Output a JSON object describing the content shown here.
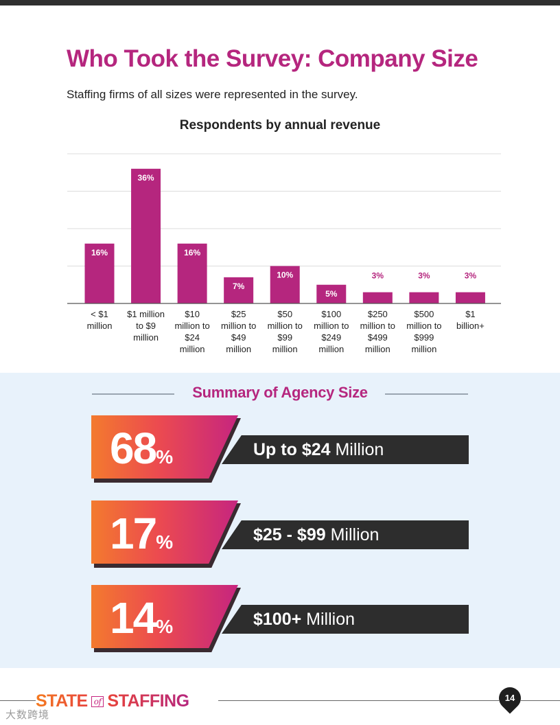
{
  "page": {
    "title": "Who Took the Survey: Company Size",
    "subtitle": "Staffing firms of all sizes were represented in the survey.",
    "page_number": "14",
    "watermark": "大数跨境"
  },
  "chart_data": {
    "type": "bar",
    "title": "Respondents by annual revenue",
    "categories": [
      [
        "< $1",
        "million"
      ],
      [
        "$1 million",
        "to $9",
        "million"
      ],
      [
        "$10",
        "million to",
        "$24",
        "million"
      ],
      [
        "$25",
        "million to",
        "$49",
        "million"
      ],
      [
        "$50",
        "million to",
        "$99",
        "million"
      ],
      [
        "$100",
        "million to",
        "$249",
        "million"
      ],
      [
        "$250",
        "million to",
        "$499",
        "million"
      ],
      [
        "$500",
        "million to",
        "$999",
        "million"
      ],
      [
        "$1",
        "billion+"
      ]
    ],
    "values": [
      16,
      36,
      16,
      7,
      10,
      5,
      3,
      3,
      3
    ],
    "value_labels": [
      "16%",
      "36%",
      "16%",
      "7%",
      "10%",
      "5%",
      "3%",
      "3%",
      "3%"
    ],
    "ylim": [
      0,
      40
    ],
    "grid": true,
    "bar_color": "#b5267e"
  },
  "summary": {
    "title": "Summary of Agency Size",
    "items": [
      {
        "number": "68",
        "suffix": "%",
        "label_bold": "Up to $24",
        "label_rest": " Million"
      },
      {
        "number": "17",
        "suffix": "%",
        "label_bold": "$25 - $99",
        "label_rest": " Million"
      },
      {
        "number": "14",
        "suffix": "%",
        "label_bold": "$100+",
        "label_rest": " Million"
      }
    ]
  },
  "footer": {
    "logo_left": "STATE",
    "logo_of": "of",
    "logo_right": "STAFFING"
  }
}
